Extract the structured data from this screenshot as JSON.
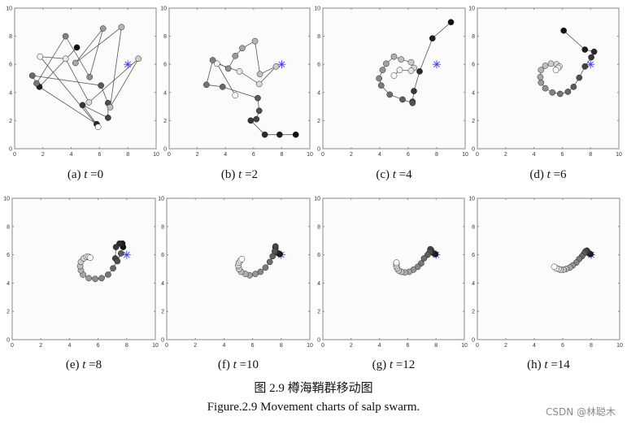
{
  "captions": {
    "chinese": "图 2.9  樽海鞘群移动图",
    "english": "Figure.2.9 Movement charts of salp swarm."
  },
  "watermark": "CSDN @林聪木",
  "colors": {
    "target": "#3a3aff",
    "line": "#555555",
    "axis": "#8a8a8a",
    "plot_bg": "#fbfbfb"
  },
  "chart_data": [
    {
      "type": "line",
      "label_prefix": "(a)",
      "label_var": "t",
      "label_value": "=0",
      "xlim": [
        0,
        10
      ],
      "ylim": [
        0,
        10
      ],
      "xticks": [
        0,
        2,
        4,
        6,
        8,
        10
      ],
      "yticks": [
        0,
        2,
        4,
        6,
        8,
        10
      ],
      "grid": false,
      "target": [
        8,
        6
      ],
      "target_marker": "asterisk",
      "points": [
        [
          4.4,
          7.2
        ],
        [
          1.75,
          4.4
        ],
        [
          5.8,
          1.75
        ],
        [
          4.8,
          3.1
        ],
        [
          6.6,
          2.2
        ],
        [
          6.6,
          3.25
        ],
        [
          6.1,
          4.5
        ],
        [
          1.25,
          5.2
        ],
        [
          1.55,
          4.65
        ],
        [
          3.6,
          8.0
        ],
        [
          5.3,
          5.1
        ],
        [
          6.25,
          8.55
        ],
        [
          4.3,
          6.1
        ],
        [
          7.55,
          8.65
        ],
        [
          6.75,
          2.95
        ],
        [
          8.75,
          6.4
        ],
        [
          5.25,
          3.3
        ],
        [
          3.6,
          6.4
        ],
        [
          1.8,
          6.55
        ],
        [
          5.9,
          1.55
        ]
      ]
    },
    {
      "type": "line",
      "label_prefix": "(b)",
      "label_var": "t",
      "label_value": "=2",
      "xlim": [
        0,
        10
      ],
      "ylim": [
        0,
        10
      ],
      "xticks": [
        0,
        2,
        4,
        6,
        8,
        10
      ],
      "yticks": [
        0,
        2,
        4,
        6,
        8,
        10
      ],
      "grid": false,
      "target": [
        8,
        6
      ],
      "target_marker": "asterisk",
      "points": [
        [
          9,
          1
        ],
        [
          7.85,
          1
        ],
        [
          6.8,
          1
        ],
        [
          5.8,
          2
        ],
        [
          6.2,
          2.1
        ],
        [
          6.4,
          2.7
        ],
        [
          6.3,
          3.6
        ],
        [
          3.8,
          4.4
        ],
        [
          2.65,
          4.55
        ],
        [
          3.1,
          6.3
        ],
        [
          4.2,
          5.7
        ],
        [
          4.7,
          6.6
        ],
        [
          5.2,
          7.15
        ],
        [
          6.1,
          7.65
        ],
        [
          6.45,
          5.3
        ],
        [
          7.6,
          5.85
        ],
        [
          6.4,
          4.6
        ],
        [
          5.0,
          5.5
        ],
        [
          3.4,
          6.05
        ],
        [
          4.7,
          3.8
        ]
      ]
    },
    {
      "type": "line",
      "label_prefix": "(c)",
      "label_var": "t",
      "label_value": "=4",
      "xlim": [
        0,
        10
      ],
      "ylim": [
        0,
        10
      ],
      "xticks": [
        0,
        2,
        4,
        6,
        8,
        10
      ],
      "yticks": [
        0,
        2,
        4,
        6,
        8,
        10
      ],
      "grid": false,
      "target": [
        8,
        6
      ],
      "target_marker": "asterisk",
      "points": [
        [
          9,
          9
        ],
        [
          7.7,
          7.85
        ],
        [
          6.8,
          5.5
        ],
        [
          6.4,
          4.1
        ],
        [
          6.3,
          3.35
        ],
        [
          6.3,
          3.25
        ],
        [
          5.6,
          3.5
        ],
        [
          4.7,
          3.85
        ],
        [
          4.1,
          4.5
        ],
        [
          3.95,
          5.0
        ],
        [
          4.2,
          5.6
        ],
        [
          4.45,
          6.05
        ],
        [
          5.0,
          6.55
        ],
        [
          5.5,
          6.35
        ],
        [
          6.2,
          6.15
        ],
        [
          6.4,
          5.75
        ],
        [
          6.2,
          5.55
        ],
        [
          5.4,
          5.6
        ],
        [
          5.0,
          5.2
        ]
      ]
    },
    {
      "type": "line",
      "label_prefix": "(d)",
      "label_var": "t",
      "label_value": "=6",
      "xlim": [
        0,
        10
      ],
      "ylim": [
        0,
        10
      ],
      "xticks": [
        0,
        2,
        4,
        6,
        8,
        10
      ],
      "yticks": [
        0,
        2,
        4,
        6,
        8,
        10
      ],
      "grid": false,
      "target": [
        8,
        6
      ],
      "target_marker": "asterisk",
      "points": [
        [
          6.1,
          8.4
        ],
        [
          7.6,
          7.05
        ],
        [
          8.25,
          6.9
        ],
        [
          8.05,
          6.5
        ],
        [
          7.6,
          5.85
        ],
        [
          7.2,
          5.05
        ],
        [
          6.8,
          4.4
        ],
        [
          6.4,
          4.05
        ],
        [
          5.85,
          3.9
        ],
        [
          5.3,
          4.0
        ],
        [
          4.8,
          4.3
        ],
        [
          4.5,
          4.7
        ],
        [
          4.45,
          5.1
        ],
        [
          4.5,
          5.6
        ],
        [
          4.8,
          5.9
        ],
        [
          5.2,
          6.05
        ],
        [
          5.6,
          6.0
        ],
        [
          5.8,
          5.85
        ],
        [
          5.7,
          5.75
        ],
        [
          5.55,
          5.6
        ]
      ]
    },
    {
      "type": "line",
      "label_prefix": "(e)",
      "label_var": "t",
      "label_value": "=8",
      "xlim": [
        0,
        10
      ],
      "ylim": [
        0,
        10
      ],
      "xticks": [
        0,
        2,
        4,
        6,
        8,
        10
      ],
      "yticks": [
        0,
        2,
        4,
        6,
        8,
        10
      ],
      "grid": false,
      "target": [
        8,
        6
      ],
      "target_marker": "asterisk",
      "points": [
        [
          7.75,
          6.55
        ],
        [
          7.7,
          6.8
        ],
        [
          7.5,
          6.8
        ],
        [
          7.25,
          6.55
        ],
        [
          7.2,
          5.75
        ],
        [
          7.35,
          5.55
        ],
        [
          7.6,
          6.1
        ],
        [
          7.05,
          5.05
        ],
        [
          6.7,
          4.6
        ],
        [
          6.25,
          4.35
        ],
        [
          5.8,
          4.3
        ],
        [
          5.35,
          4.35
        ],
        [
          4.95,
          4.6
        ],
        [
          4.8,
          4.9
        ],
        [
          4.75,
          5.2
        ],
        [
          4.8,
          5.5
        ],
        [
          5.0,
          5.75
        ],
        [
          5.2,
          5.85
        ],
        [
          5.35,
          5.85
        ],
        [
          5.45,
          5.8
        ]
      ]
    },
    {
      "type": "line",
      "label_prefix": "(f)",
      "label_var": "t",
      "label_value": "=10",
      "xlim": [
        0,
        10
      ],
      "ylim": [
        0,
        10
      ],
      "xticks": [
        0,
        2,
        4,
        6,
        8,
        10
      ],
      "yticks": [
        0,
        2,
        4,
        6,
        8,
        10
      ],
      "grid": false,
      "target": [
        8,
        6
      ],
      "target_marker": "asterisk",
      "points": [
        [
          7.9,
          6.05
        ],
        [
          7.8,
          6.1
        ],
        [
          7.65,
          6.2
        ],
        [
          7.6,
          6.5
        ],
        [
          7.6,
          6.6
        ],
        [
          7.55,
          6.25
        ],
        [
          7.4,
          5.9
        ],
        [
          7.2,
          5.5
        ],
        [
          6.9,
          5.1
        ],
        [
          6.55,
          4.8
        ],
        [
          6.2,
          4.65
        ],
        [
          5.8,
          4.55
        ],
        [
          5.5,
          4.65
        ],
        [
          5.2,
          4.8
        ],
        [
          5.05,
          5.0
        ],
        [
          5.0,
          5.25
        ],
        [
          5.05,
          5.45
        ],
        [
          5.15,
          5.6
        ],
        [
          5.25,
          5.7
        ]
      ]
    },
    {
      "type": "line",
      "label_prefix": "(g)",
      "label_var": "t",
      "label_value": "=12",
      "xlim": [
        0,
        10
      ],
      "ylim": [
        0,
        10
      ],
      "xticks": [
        0,
        2,
        4,
        6,
        8,
        10
      ],
      "yticks": [
        0,
        2,
        4,
        6,
        8,
        10
      ],
      "grid": false,
      "target": [
        8,
        6
      ],
      "target_marker": "asterisk",
      "points": [
        [
          7.95,
          6.05
        ],
        [
          7.85,
          6.1
        ],
        [
          7.7,
          6.2
        ],
        [
          7.65,
          6.35
        ],
        [
          7.6,
          6.4
        ],
        [
          7.55,
          6.2
        ],
        [
          7.4,
          6.0
        ],
        [
          7.15,
          5.75
        ],
        [
          6.95,
          5.4
        ],
        [
          6.7,
          5.15
        ],
        [
          6.4,
          4.95
        ],
        [
          6.1,
          4.8
        ],
        [
          5.8,
          4.75
        ],
        [
          5.55,
          4.8
        ],
        [
          5.35,
          4.9
        ],
        [
          5.25,
          5.05
        ],
        [
          5.2,
          5.2
        ],
        [
          5.2,
          5.35
        ],
        [
          5.2,
          5.45
        ]
      ]
    },
    {
      "type": "line",
      "label_prefix": "(h)",
      "label_var": "t",
      "label_value": "=14",
      "xlim": [
        0,
        10
      ],
      "ylim": [
        0,
        10
      ],
      "xticks": [
        0,
        2,
        4,
        6,
        8,
        10
      ],
      "yticks": [
        0,
        2,
        4,
        6,
        8,
        10
      ],
      "grid": false,
      "target": [
        8,
        6
      ],
      "target_marker": "asterisk",
      "points": [
        [
          7.95,
          6.05
        ],
        [
          7.85,
          6.1
        ],
        [
          7.75,
          6.2
        ],
        [
          7.7,
          6.3
        ],
        [
          7.6,
          6.25
        ],
        [
          7.5,
          6.1
        ],
        [
          7.35,
          5.9
        ],
        [
          7.15,
          5.7
        ],
        [
          6.95,
          5.45
        ],
        [
          6.7,
          5.25
        ],
        [
          6.5,
          5.1
        ],
        [
          6.25,
          5.0
        ],
        [
          6.05,
          4.95
        ],
        [
          5.85,
          4.95
        ],
        [
          5.7,
          5.0
        ],
        [
          5.55,
          5.05
        ],
        [
          5.4,
          5.15
        ]
      ]
    }
  ]
}
